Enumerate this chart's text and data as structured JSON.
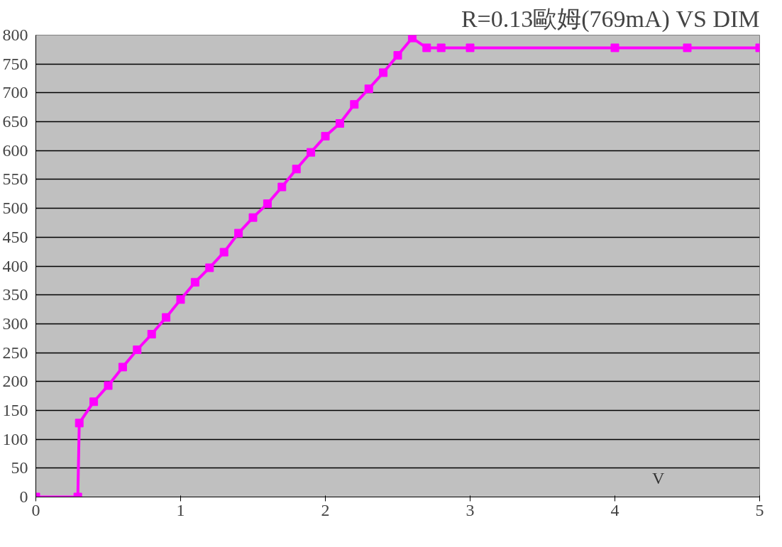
{
  "chart_data": {
    "type": "line",
    "title": "R=0.13歐姆(769mA) VS DIM",
    "xlabel": "V",
    "x": [
      0,
      0.29,
      0.3,
      0.4,
      0.5,
      0.6,
      0.7,
      0.8,
      0.9,
      1.0,
      1.1,
      1.2,
      1.3,
      1.4,
      1.5,
      1.6,
      1.7,
      1.8,
      1.9,
      2.0,
      2.1,
      2.2,
      2.3,
      2.4,
      2.5,
      2.6,
      2.7,
      2.8,
      3,
      4,
      4.5,
      5
    ],
    "series": [
      {
        "color": "#ff00ff",
        "values": [
          0,
          0,
          128,
          165,
          193,
          225,
          255,
          282,
          311,
          342,
          372,
          397,
          424,
          457,
          484,
          508,
          537,
          568,
          597,
          625,
          647,
          680,
          707,
          735,
          765,
          795,
          778,
          778,
          778,
          778,
          778,
          778
        ]
      }
    ],
    "xlim": [
      0,
      5
    ],
    "xticks": [
      0,
      1,
      2,
      3,
      4,
      5
    ],
    "ylim": [
      0,
      800
    ],
    "yticks": [
      0,
      50,
      100,
      150,
      200,
      250,
      300,
      350,
      400,
      450,
      500,
      550,
      600,
      650,
      700,
      750,
      800
    ],
    "grid": "y",
    "marker": "square",
    "line_style": "solid"
  }
}
